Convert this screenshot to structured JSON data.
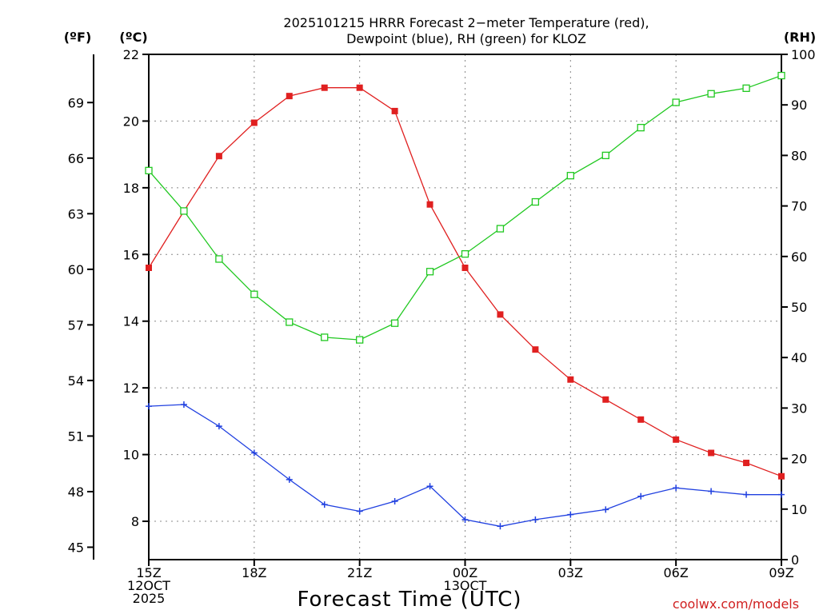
{
  "chart_data": {
    "type": "line",
    "title_lines": [
      "2025101215 HRRR Forecast 2−meter Temperature (red),",
      "Dewpoint (blue), RH (green) for KLOZ"
    ],
    "xlabel": "Forecast Time (UTC)",
    "credit": "coolwx.com/models",
    "units": {
      "fahrenheit": "(ºF)",
      "celsius": "(ºC)",
      "rh": "(RH)"
    },
    "x_range": [
      0,
      18
    ],
    "x_ticks": [
      {
        "x": 0,
        "lines": [
          "15Z",
          "12OCT",
          "2025"
        ]
      },
      {
        "x": 3,
        "lines": [
          "18Z"
        ]
      },
      {
        "x": 6,
        "lines": [
          "21Z"
        ]
      },
      {
        "x": 9,
        "lines": [
          "00Z",
          "13OCT"
        ]
      },
      {
        "x": 12,
        "lines": [
          "03Z"
        ]
      },
      {
        "x": 15,
        "lines": [
          "06Z"
        ]
      },
      {
        "x": 18,
        "lines": [
          "09Z"
        ]
      }
    ],
    "celsius_axis": {
      "range": [
        6.85,
        22
      ],
      "ticks": [
        "8",
        "10",
        "12",
        "14",
        "16",
        "18",
        "20",
        "22"
      ]
    },
    "fahrenheit_axis": {
      "ticks": [
        "45",
        "48",
        "51",
        "54",
        "57",
        "60",
        "63",
        "66",
        "69"
      ]
    },
    "rh_axis": {
      "range": [
        0,
        100
      ],
      "ticks": [
        "0",
        "10",
        "20",
        "30",
        "40",
        "50",
        "60",
        "70",
        "80",
        "90",
        "100"
      ]
    },
    "series": [
      {
        "name": "Temperature",
        "axis": "celsius",
        "color": "#e02020",
        "marker": "filled-square",
        "values": [
          15.6,
          17.3,
          18.95,
          19.95,
          20.75,
          21.0,
          21.0,
          20.3,
          17.5,
          15.6,
          14.2,
          13.15,
          12.25,
          11.65,
          11.05,
          10.45,
          10.05,
          9.75,
          9.35
        ]
      },
      {
        "name": "Dewpoint",
        "axis": "celsius",
        "color": "#2040e0",
        "marker": "plus",
        "values": [
          11.45,
          11.5,
          10.85,
          10.05,
          9.25,
          8.5,
          8.3,
          8.6,
          9.05,
          8.05,
          7.85,
          8.05,
          8.2,
          8.35,
          8.75,
          9.0,
          8.9,
          8.8,
          8.8
        ]
      },
      {
        "name": "RH",
        "axis": "rh",
        "color": "#20c820",
        "marker": "open-square",
        "values": [
          77,
          69,
          59.5,
          52.5,
          47,
          44,
          43.5,
          46.8,
          57,
          60.5,
          65.5,
          70.8,
          76,
          80,
          85.5,
          90.5,
          92.2,
          93.3,
          95.8
        ]
      }
    ]
  }
}
